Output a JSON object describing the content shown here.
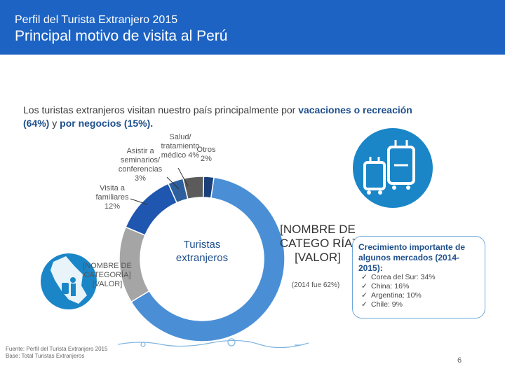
{
  "header": {
    "supertitle": "Perfil del Turista Extranjero 2015",
    "title": "Principal motivo de visita al Perú"
  },
  "intro": {
    "text_1": "Los turistas extranjeros visitan nuestro país principalmente por ",
    "bold_1": "vacaciones o recreación (64%)",
    "text_2": " y ",
    "bold_2": "por negocios (15%).",
    "text_3": ""
  },
  "chart_data": {
    "type": "donut",
    "center_label": "Turistas extranjeros",
    "slices": [
      {
        "label": "[NOMBRE DE CATEGORÍA]",
        "value_label": "[VALOR]",
        "value": 64,
        "color": "#4a8fd6"
      },
      {
        "label": "[NOMBRE DE CATEGORÍA]",
        "value_label": "[VALOR]",
        "value": 15,
        "color": "#a5a5a5"
      },
      {
        "label": "Visita a familiares",
        "value_label": "12%",
        "value": 12,
        "color": "#1e56b0"
      },
      {
        "label": "Asistir a seminarios/ conferencias",
        "value_label": "3%",
        "value": 3,
        "color": "#2d5f9e"
      },
      {
        "label": "Salud/ tratamiento médico",
        "value_label": "4%",
        "value": 4,
        "color": "#5b5b5b"
      },
      {
        "label": "Otros",
        "value_label": "2%",
        "value": 2,
        "color": "#1a3f7a"
      }
    ],
    "big_label": {
      "name": "[NOMBRE DE CATEGO RÍA]",
      "value": "[VALOR]"
    },
    "overlap_text": "(2014 fue 62%)",
    "small_label": {
      "name": "[NOMBRE DE CATEGORÍA]",
      "value": "[VALOR]"
    },
    "labels": {
      "salud": "Salud/ tratamiento médico 4%",
      "otros": "Otros 2%",
      "seminarios": "Asistir a seminarios/ conferencias 3%",
      "familiares": "Visita a familiares 12%"
    }
  },
  "growth": {
    "title": "Crecimiento importante de algunos mercados (2014-2015):",
    "items": [
      "Corea del Sur: 34%",
      "China: 16%",
      "Argentina: 10%",
      "Chile: 9%"
    ]
  },
  "footer": {
    "source": "Fuente: Perfil del Turista Extranjero 2015",
    "base": "Base: Total Turistas Extranjeros",
    "page": "6"
  },
  "colors": {
    "header": "#1d63c4",
    "icon_circle": "#1a86c8"
  }
}
